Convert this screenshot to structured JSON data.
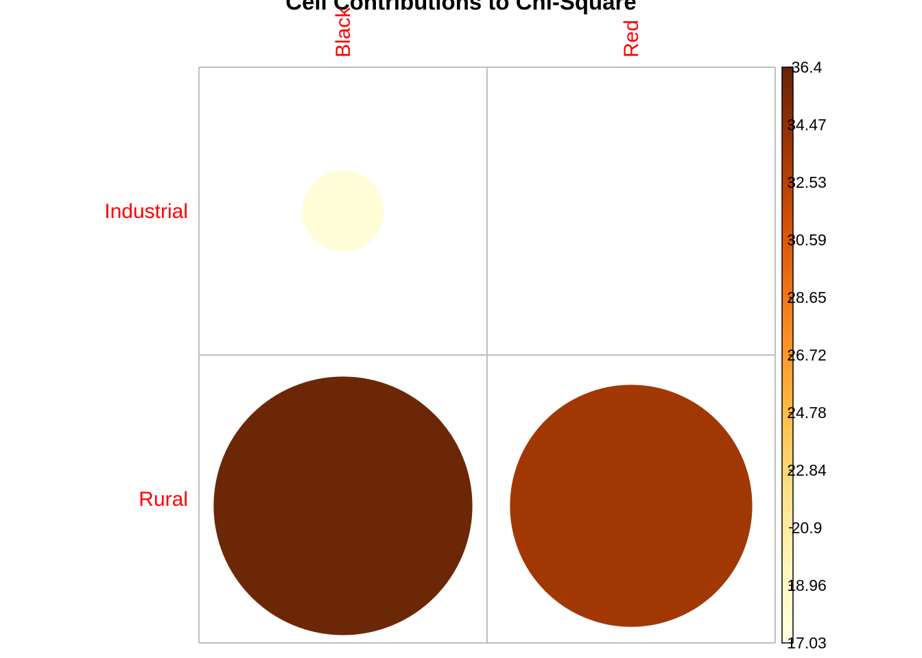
{
  "chart_data": {
    "type": "heatmap",
    "title": "Cell Contributions to Chi-Square",
    "columns": [
      "Black",
      "Red"
    ],
    "rows": [
      "Industrial",
      "Rural"
    ],
    "values": [
      [
        17.8,
        17.03
      ],
      [
        36.1,
        33.6
      ]
    ],
    "cell_shape": "circle",
    "label_color": "#ff0000",
    "grid_color": "#bebebe",
    "colorbar": {
      "min": 17.03,
      "max": 36.4,
      "ticks": [
        "17.03",
        "18.96",
        "20.9",
        "22.84",
        "24.78",
        "26.72",
        "28.65",
        "30.59",
        "32.53",
        "34.47",
        "36.4"
      ],
      "colors": [
        "#ffffe5",
        "#fff7bc",
        "#fee391",
        "#fec44f",
        "#fe9929",
        "#ec7014",
        "#cc4c02",
        "#993404",
        "#662506"
      ]
    },
    "legend_position": "right"
  }
}
